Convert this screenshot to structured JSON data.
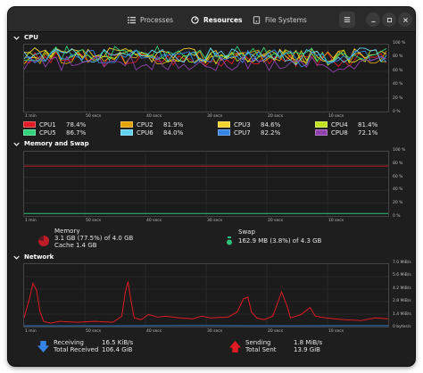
{
  "tabs": [
    {
      "label": "Processes",
      "icon": "list-icon"
    },
    {
      "label": "Resources",
      "icon": "gauge-icon"
    },
    {
      "label": "File Systems",
      "icon": "drive-icon"
    }
  ],
  "active_tab": "Resources",
  "sections": {
    "cpu": "CPU",
    "memory": "Memory and Swap",
    "network": "Network"
  },
  "time_ticks": [
    "1 min",
    "50 secs",
    "40 secs",
    "30 secs",
    "20 secs",
    "10 secs"
  ],
  "percent_ticks": [
    "100 %",
    "80 %",
    "60 %",
    "40 %",
    "20 %",
    "0 %"
  ],
  "cpus": [
    {
      "name": "CPU1",
      "value": "78.4%",
      "color": "#e01b24"
    },
    {
      "name": "CPU2",
      "value": "81.9%",
      "color": "#e5a50a"
    },
    {
      "name": "CPU3",
      "value": "84.6%",
      "color": "#f6d32d"
    },
    {
      "name": "CPU4",
      "value": "81.4%",
      "color": "#c0e020"
    },
    {
      "name": "CPU5",
      "value": "86.7%",
      "color": "#33d17a"
    },
    {
      "name": "CPU6",
      "value": "84.0%",
      "color": "#62d0f0"
    },
    {
      "name": "CPU7",
      "value": "82.2%",
      "color": "#3584e4"
    },
    {
      "name": "CPU8",
      "value": "72.1%",
      "color": "#9141ac"
    }
  ],
  "memory": {
    "label": "Memory",
    "used": "3.1 GB (77.5%) of 4.0 GB",
    "cache": "Cache 1.4 GB",
    "percent": 77.5,
    "color": "#c01c28"
  },
  "swap": {
    "label": "Swap",
    "used": "162.9 MB (3.8%) of 4.3 GB",
    "percent": 3.8,
    "color": "#2ec27e"
  },
  "network": {
    "ticks": [
      "7.0 MiB/s",
      "5.6 MiB/s",
      "4.2 MiB/s",
      "2.8 MiB/s",
      "1.4 MiB/s",
      "0 bytes/s"
    ],
    "receiving_label": "Receiving",
    "receiving": "16.5 KiB/s",
    "total_received_label": "Total Received",
    "total_received": "106.4 GiB",
    "sending_label": "Sending",
    "sending": "1.8 MiB/s",
    "total_sent_label": "Total Sent",
    "total_sent": "13.9 GiB",
    "receive_color": "#3584e4",
    "send_color": "#e01b24"
  }
}
